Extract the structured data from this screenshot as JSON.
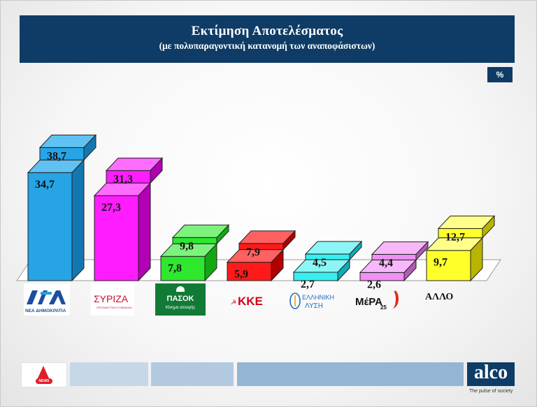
{
  "header": {
    "title": "Εκτίμηση Αποτελέσματος",
    "subtitle": "(με πολυπαραγοντική  κατανομή των αναποφάσιστων)"
  },
  "unit_badge": "%",
  "logos": {
    "nd": "ΝΕΑ ΔΗΜΟΚΡΑΤΙΑ",
    "syriza": "ΣΥΡΙΖΑ",
    "syriza_sub": "ΠΡΟΟΔΕΥΤΙΚΗ ΣΥΜΜΑΧΙΑ",
    "pasok": "ΠΑΣΟΚ",
    "pasok_sub": "Κίνημα αλλαγής",
    "kke": "ΚΚΕ",
    "el_top": "ΕΛΛΗΝΙΚΗ",
    "el_bottom": "ΛΥΣΗ",
    "mera": "ΜέΡΑ",
    "mera_num": "25",
    "allo": "ΑΛΛΟ"
  },
  "footer": {
    "news_label": "NEWS",
    "alco": "alco",
    "tagline": "The pulse of society"
  },
  "chart_data": {
    "type": "bar",
    "categories": [
      "ΝΔ",
      "ΣΥΡΙΖΑ",
      "ΠΑΣΟΚ-ΚΙΝΑΛ",
      "ΚΚΕ",
      "Ελληνική Λύση",
      "ΜέΡΑ25",
      "ΑΛΛΟ"
    ],
    "series": [
      {
        "values": [
          34.7,
          27.3,
          7.8,
          5.9,
          2.7,
          2.6,
          9.7
        ]
      },
      {
        "values": [
          38.7,
          31.3,
          9.8,
          7.9,
          4.5,
          4.4,
          12.7
        ]
      }
    ],
    "value_labels": [
      [
        "34,7",
        "27,3",
        "7,8",
        "5,9",
        "2,7",
        "2,6",
        "9,7"
      ],
      [
        "38,7",
        "31,3",
        "9,8",
        "7,9",
        "4,5",
        "4,4",
        "12,7"
      ]
    ],
    "colors": [
      {
        "front": "#27a4e6",
        "top": "#5fc2f2",
        "side": "#1378b2"
      },
      {
        "front": "#ff1cff",
        "top": "#ff6cff",
        "side": "#b400b4"
      },
      {
        "front": "#2ee82e",
        "top": "#7ef27e",
        "side": "#13a813"
      },
      {
        "front": "#ff1a1a",
        "top": "#ff6060",
        "side": "#b00000"
      },
      {
        "front": "#35f0f0",
        "top": "#8cf6f6",
        "side": "#14a8b8"
      },
      {
        "front": "#f090f4",
        "top": "#f6b8f8",
        "side": "#b25ab6"
      },
      {
        "front": "#ffff2a",
        "top": "#ffff8a",
        "side": "#b8b400"
      }
    ],
    "grid": false,
    "legend": "none"
  }
}
